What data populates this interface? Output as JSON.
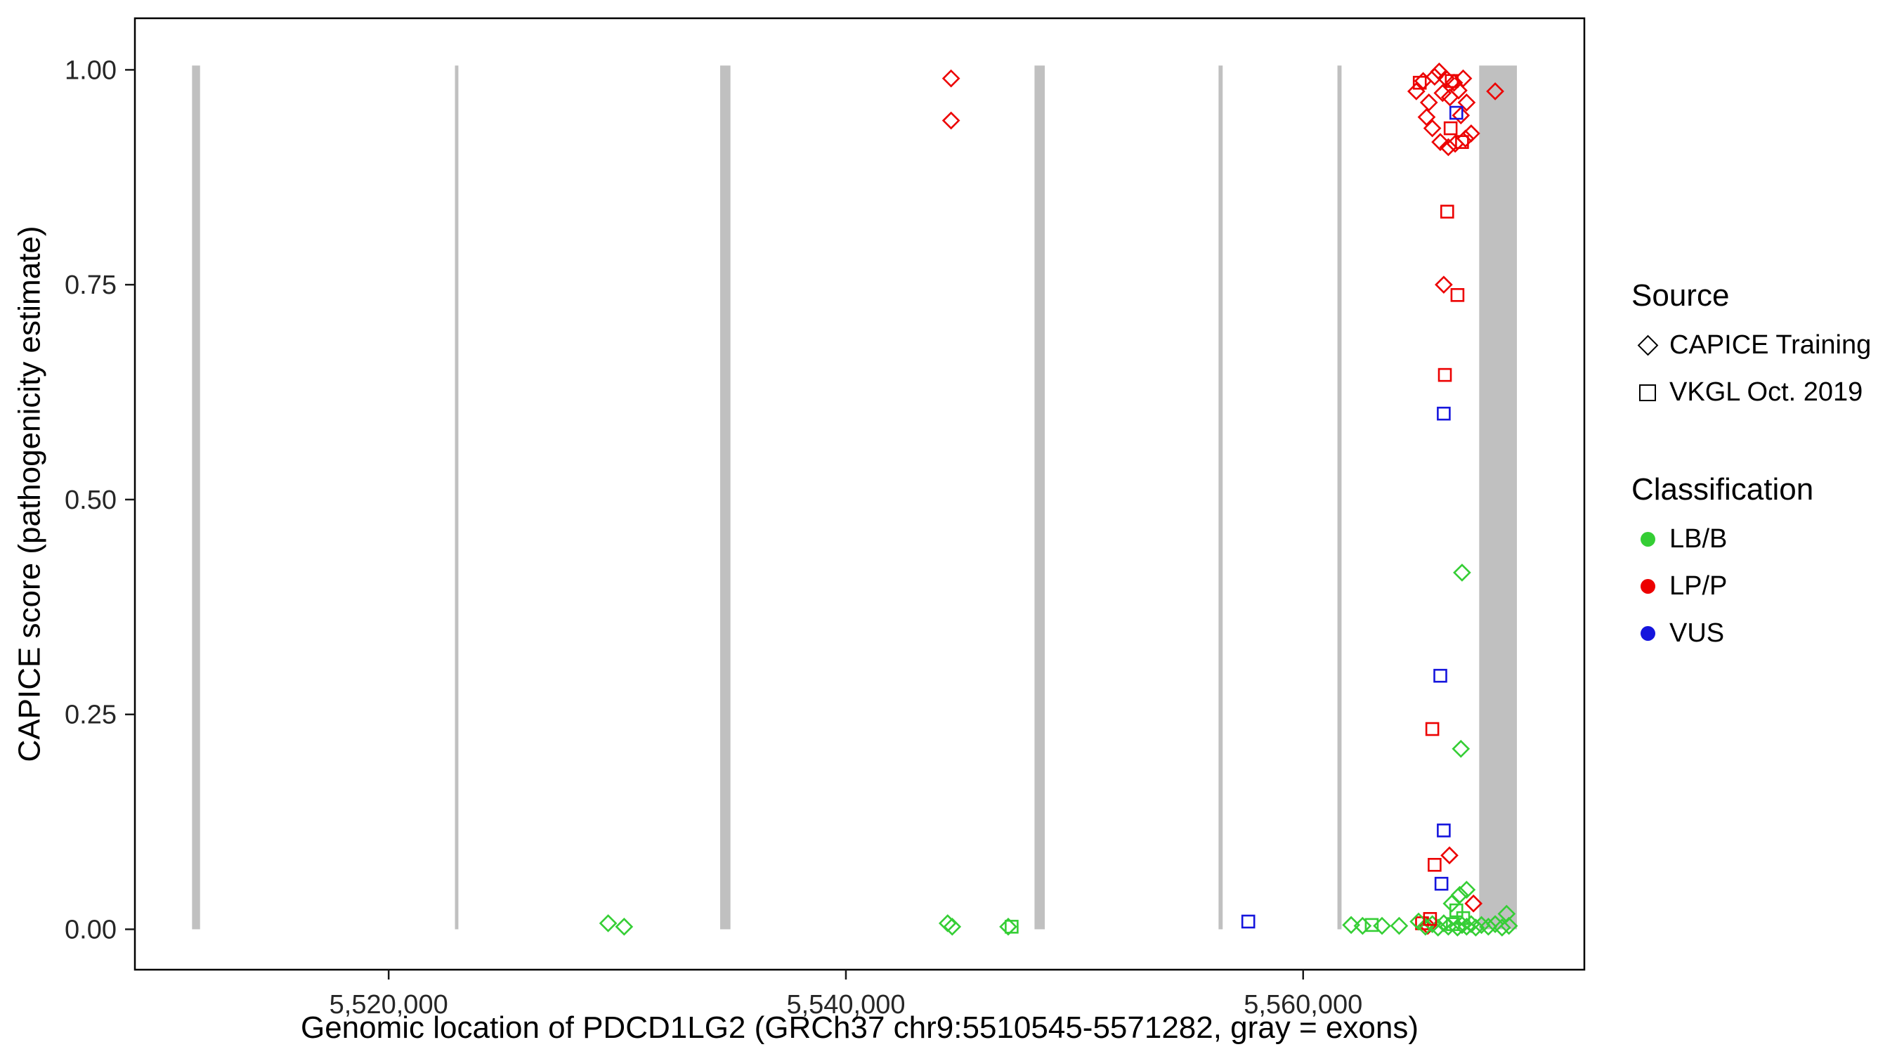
{
  "chart_data": {
    "type": "scatter",
    "title": "",
    "xlabel": "Genomic location of PDCD1LG2 (GRCh37 chr9:5510545-5571282, gray = exons)",
    "ylabel": "CAPICE score (pathogenicity estimate)",
    "xlim": [
      5508900,
      5572300
    ],
    "ylim": [
      -0.047,
      1.06
    ],
    "grid": false,
    "legend_position": "right",
    "x_ticks": [
      {
        "value": 5520000,
        "label": "5,520,000"
      },
      {
        "value": 5540000,
        "label": "5,540,000"
      },
      {
        "value": 5560000,
        "label": "5,560,000"
      }
    ],
    "y_ticks": [
      {
        "value": 0.0,
        "label": "0.00"
      },
      {
        "value": 0.25,
        "label": "0.25"
      },
      {
        "value": 0.5,
        "label": "0.50"
      },
      {
        "value": 0.75,
        "label": "0.75"
      },
      {
        "value": 1.0,
        "label": "1.00"
      }
    ],
    "exon_color": "#C0C0C0",
    "exon_ymin": 0.0,
    "exon_ymax": 1.005,
    "exons": [
      [
        5511400,
        5511750
      ],
      [
        5522900,
        5523050
      ],
      [
        5534500,
        5534950
      ],
      [
        5548250,
        5548700
      ],
      [
        5556300,
        5556480
      ],
      [
        5561500,
        5561680
      ],
      [
        5567700,
        5569350
      ]
    ],
    "classification_colors": {
      "LB/B": "#35CE35",
      "LP/P": "#EC0000",
      "VUS": "#1515DD"
    },
    "shape_meaning": {
      "diamond": "CAPICE Training",
      "square": "VKGL Oct. 2019"
    },
    "points": [
      {
        "x": 5564950,
        "y": 0.975,
        "shape": "diamond",
        "cls": "LP/P"
      },
      {
        "x": 5565250,
        "y": 0.987,
        "shape": "diamond",
        "cls": "LP/P"
      },
      {
        "x": 5565500,
        "y": 0.962,
        "shape": "diamond",
        "cls": "LP/P"
      },
      {
        "x": 5565750,
        "y": 0.992,
        "shape": "diamond",
        "cls": "LP/P"
      },
      {
        "x": 5565950,
        "y": 0.998,
        "shape": "diamond",
        "cls": "LP/P"
      },
      {
        "x": 5566100,
        "y": 0.973,
        "shape": "diamond",
        "cls": "LP/P"
      },
      {
        "x": 5566250,
        "y": 0.99,
        "shape": "diamond",
        "cls": "LP/P"
      },
      {
        "x": 5566420,
        "y": 0.968,
        "shape": "diamond",
        "cls": "LP/P"
      },
      {
        "x": 5566600,
        "y": 0.985,
        "shape": "diamond",
        "cls": "LP/P"
      },
      {
        "x": 5566800,
        "y": 0.976,
        "shape": "diamond",
        "cls": "LP/P"
      },
      {
        "x": 5567000,
        "y": 0.99,
        "shape": "diamond",
        "cls": "LP/P"
      },
      {
        "x": 5567150,
        "y": 0.962,
        "shape": "diamond",
        "cls": "LP/P"
      },
      {
        "x": 5565400,
        "y": 0.945,
        "shape": "diamond",
        "cls": "LP/P"
      },
      {
        "x": 5565650,
        "y": 0.932,
        "shape": "diamond",
        "cls": "LP/P"
      },
      {
        "x": 5566000,
        "y": 0.916,
        "shape": "diamond",
        "cls": "LP/P"
      },
      {
        "x": 5566350,
        "y": 0.91,
        "shape": "diamond",
        "cls": "LP/P"
      },
      {
        "x": 5566650,
        "y": 0.914,
        "shape": "diamond",
        "cls": "LP/P"
      },
      {
        "x": 5567100,
        "y": 0.92,
        "shape": "diamond",
        "cls": "LP/P"
      },
      {
        "x": 5567350,
        "y": 0.926,
        "shape": "diamond",
        "cls": "LP/P"
      },
      {
        "x": 5568400,
        "y": 0.975,
        "shape": "diamond",
        "cls": "LP/P"
      },
      {
        "x": 5566900,
        "y": 0.947,
        "shape": "diamond",
        "cls": "LP/P"
      },
      {
        "x": 5565100,
        "y": 0.985,
        "shape": "square",
        "cls": "LP/P"
      },
      {
        "x": 5566500,
        "y": 0.987,
        "shape": "square",
        "cls": "LP/P"
      },
      {
        "x": 5566950,
        "y": 0.916,
        "shape": "square",
        "cls": "LP/P"
      },
      {
        "x": 5566450,
        "y": 0.932,
        "shape": "square",
        "cls": "LP/P"
      },
      {
        "x": 5566700,
        "y": 0.95,
        "shape": "square",
        "cls": "VUS"
      },
      {
        "x": 5566300,
        "y": 0.835,
        "shape": "square",
        "cls": "LP/P"
      },
      {
        "x": 5566150,
        "y": 0.75,
        "shape": "diamond",
        "cls": "LP/P"
      },
      {
        "x": 5566750,
        "y": 0.738,
        "shape": "square",
        "cls": "LP/P"
      },
      {
        "x": 5566200,
        "y": 0.645,
        "shape": "square",
        "cls": "LP/P"
      },
      {
        "x": 5566150,
        "y": 0.6,
        "shape": "square",
        "cls": "VUS"
      },
      {
        "x": 5566950,
        "y": 0.415,
        "shape": "diamond",
        "cls": "LB/B"
      },
      {
        "x": 5566000,
        "y": 0.295,
        "shape": "square",
        "cls": "VUS"
      },
      {
        "x": 5565650,
        "y": 0.233,
        "shape": "square",
        "cls": "LP/P"
      },
      {
        "x": 5566900,
        "y": 0.21,
        "shape": "diamond",
        "cls": "LB/B"
      },
      {
        "x": 5566150,
        "y": 0.115,
        "shape": "square",
        "cls": "VUS"
      },
      {
        "x": 5566400,
        "y": 0.086,
        "shape": "diamond",
        "cls": "LP/P"
      },
      {
        "x": 5565750,
        "y": 0.075,
        "shape": "square",
        "cls": "LP/P"
      },
      {
        "x": 5566050,
        "y": 0.053,
        "shape": "square",
        "cls": "VUS"
      },
      {
        "x": 5567150,
        "y": 0.046,
        "shape": "diamond",
        "cls": "LB/B"
      },
      {
        "x": 5544600,
        "y": 0.99,
        "shape": "diamond",
        "cls": "LP/P"
      },
      {
        "x": 5544600,
        "y": 0.941,
        "shape": "diamond",
        "cls": "LP/P"
      },
      {
        "x": 5529600,
        "y": 0.007,
        "shape": "diamond",
        "cls": "LB/B"
      },
      {
        "x": 5530300,
        "y": 0.003,
        "shape": "diamond",
        "cls": "LB/B"
      },
      {
        "x": 5544450,
        "y": 0.007,
        "shape": "diamond",
        "cls": "LB/B"
      },
      {
        "x": 5544650,
        "y": 0.003,
        "shape": "diamond",
        "cls": "LB/B"
      },
      {
        "x": 5547100,
        "y": 0.003,
        "shape": "diamond",
        "cls": "LB/B"
      },
      {
        "x": 5547250,
        "y": 0.003,
        "shape": "square",
        "cls": "LB/B"
      },
      {
        "x": 5557600,
        "y": 0.009,
        "shape": "square",
        "cls": "VUS"
      },
      {
        "x": 5562100,
        "y": 0.005,
        "shape": "diamond",
        "cls": "LB/B"
      },
      {
        "x": 5562600,
        "y": 0.004,
        "shape": "diamond",
        "cls": "LB/B"
      },
      {
        "x": 5563000,
        "y": 0.005,
        "shape": "square",
        "cls": "LB/B"
      },
      {
        "x": 5563450,
        "y": 0.004,
        "shape": "diamond",
        "cls": "LB/B"
      },
      {
        "x": 5564200,
        "y": 0.004,
        "shape": "diamond",
        "cls": "LB/B"
      },
      {
        "x": 5565200,
        "y": 0.007,
        "shape": "square",
        "cls": "LP/P"
      },
      {
        "x": 5565450,
        "y": 0.004,
        "shape": "diamond",
        "cls": "LP/P"
      },
      {
        "x": 5565050,
        "y": 0.009,
        "shape": "diamond",
        "cls": "LB/B"
      },
      {
        "x": 5565350,
        "y": 0.003,
        "shape": "diamond",
        "cls": "LB/B"
      },
      {
        "x": 5565650,
        "y": 0.006,
        "shape": "diamond",
        "cls": "LB/B"
      },
      {
        "x": 5565900,
        "y": 0.002,
        "shape": "diamond",
        "cls": "LB/B"
      },
      {
        "x": 5566150,
        "y": 0.007,
        "shape": "diamond",
        "cls": "LB/B"
      },
      {
        "x": 5566350,
        "y": 0.003,
        "shape": "diamond",
        "cls": "LB/B"
      },
      {
        "x": 5566550,
        "y": 0.006,
        "shape": "square",
        "cls": "LB/B"
      },
      {
        "x": 5566750,
        "y": 0.002,
        "shape": "diamond",
        "cls": "LB/B"
      },
      {
        "x": 5566950,
        "y": 0.005,
        "shape": "diamond",
        "cls": "LB/B"
      },
      {
        "x": 5567150,
        "y": 0.003,
        "shape": "diamond",
        "cls": "LB/B"
      },
      {
        "x": 5567350,
        "y": 0.006,
        "shape": "diamond",
        "cls": "LB/B"
      },
      {
        "x": 5567550,
        "y": 0.002,
        "shape": "diamond",
        "cls": "LB/B"
      },
      {
        "x": 5567800,
        "y": 0.005,
        "shape": "diamond",
        "cls": "LB/B"
      },
      {
        "x": 5568100,
        "y": 0.003,
        "shape": "diamond",
        "cls": "LB/B"
      },
      {
        "x": 5568400,
        "y": 0.006,
        "shape": "diamond",
        "cls": "LB/B"
      },
      {
        "x": 5568700,
        "y": 0.002,
        "shape": "diamond",
        "cls": "LB/B"
      },
      {
        "x": 5569000,
        "y": 0.004,
        "shape": "diamond",
        "cls": "LB/B"
      },
      {
        "x": 5567000,
        "y": 0.013,
        "shape": "square",
        "cls": "LB/B"
      },
      {
        "x": 5566500,
        "y": 0.03,
        "shape": "diamond",
        "cls": "LB/B"
      },
      {
        "x": 5566700,
        "y": 0.022,
        "shape": "square",
        "cls": "LB/B"
      },
      {
        "x": 5567450,
        "y": 0.03,
        "shape": "diamond",
        "cls": "LP/P"
      },
      {
        "x": 5566850,
        "y": 0.04,
        "shape": "diamond",
        "cls": "LB/B"
      },
      {
        "x": 5565550,
        "y": 0.012,
        "shape": "square",
        "cls": "LP/P"
      },
      {
        "x": 5568900,
        "y": 0.018,
        "shape": "diamond",
        "cls": "LB/B"
      }
    ]
  },
  "legend": {
    "source": {
      "title": "Source",
      "items": [
        {
          "shape": "diamond",
          "label": "CAPICE Training"
        },
        {
          "shape": "square",
          "label": "VKGL Oct. 2019"
        }
      ]
    },
    "classification": {
      "title": "Classification",
      "items": [
        {
          "label": "LB/B",
          "color": "#35CE35"
        },
        {
          "label": "LP/P",
          "color": "#EC0000"
        },
        {
          "label": "VUS",
          "color": "#1515DD"
        }
      ]
    }
  }
}
